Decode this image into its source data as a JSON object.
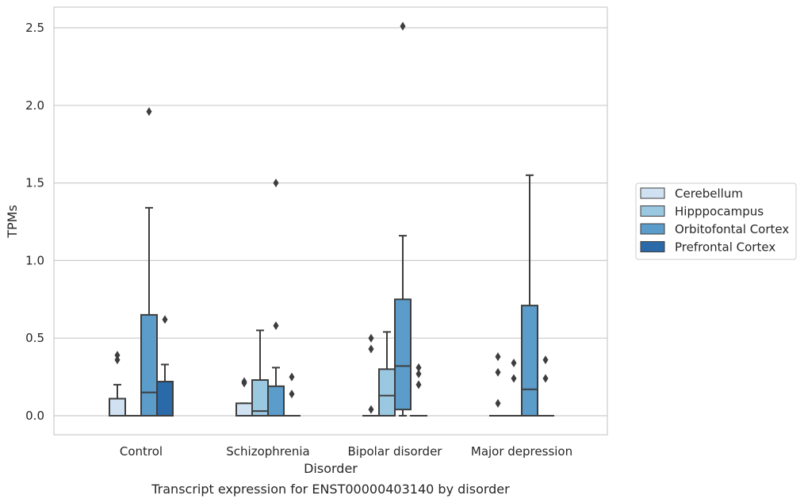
{
  "chart_data": {
    "type": "box",
    "xlabel": "Disorder",
    "ylabel": "TPMs",
    "caption": "Transcript expression for ENST00000403140 by disorder",
    "ylim": [
      -0.12,
      2.64
    ],
    "yticks": [
      "0.0",
      "0.5",
      "1.0",
      "1.5",
      "2.0",
      "2.5"
    ],
    "grid": "horizontal",
    "legend_placement": "right",
    "categories": [
      "Control",
      "Schizophrenia",
      "Bipolar disorder",
      "Major depression"
    ],
    "series": [
      {
        "name": "Cerebellum",
        "color": "#d0e1f2",
        "boxes": [
          {
            "q1": 0.0,
            "median": 0.0,
            "q3": 0.11,
            "whislo": 0.0,
            "whishi": 0.2,
            "fliers": [
              0.36,
              0.39
            ]
          },
          {
            "q1": 0.0,
            "median": 0.0,
            "q3": 0.08,
            "whislo": 0.0,
            "whishi": 0.08,
            "fliers": [
              0.21,
              0.22
            ]
          },
          {
            "q1": 0.0,
            "median": 0.0,
            "q3": 0.0,
            "whislo": 0.0,
            "whishi": 0.0,
            "fliers": [
              0.04,
              0.43,
              0.5
            ]
          },
          {
            "q1": 0.0,
            "median": 0.0,
            "q3": 0.0,
            "whislo": 0.0,
            "whishi": 0.0,
            "fliers": [
              0.08,
              0.28,
              0.38
            ]
          }
        ]
      },
      {
        "name": "Hipppocampus",
        "color": "#9ac8e0",
        "boxes": [
          {
            "q1": 0.0,
            "median": 0.0,
            "q3": 0.0,
            "whislo": 0.0,
            "whishi": 0.0,
            "fliers": []
          },
          {
            "q1": 0.0,
            "median": 0.03,
            "q3": 0.23,
            "whislo": 0.0,
            "whishi": 0.55,
            "fliers": []
          },
          {
            "q1": 0.0,
            "median": 0.13,
            "q3": 0.3,
            "whislo": 0.0,
            "whishi": 0.54,
            "fliers": []
          },
          {
            "q1": 0.0,
            "median": 0.0,
            "q3": 0.0,
            "whislo": 0.0,
            "whishi": 0.0,
            "fliers": [
              0.24,
              0.34
            ]
          }
        ]
      },
      {
        "name": "Orbitofontal Cortex",
        "color": "#5b9ccb",
        "boxes": [
          {
            "q1": 0.0,
            "median": 0.15,
            "q3": 0.65,
            "whislo": 0.0,
            "whishi": 1.34,
            "fliers": [
              1.96
            ]
          },
          {
            "q1": 0.0,
            "median": 0.0,
            "q3": 0.19,
            "whislo": 0.0,
            "whishi": 0.31,
            "fliers": [
              0.58,
              1.5
            ]
          },
          {
            "q1": 0.04,
            "median": 0.32,
            "q3": 0.75,
            "whislo": 0.0,
            "whishi": 1.16,
            "fliers": [
              2.51
            ]
          },
          {
            "q1": 0.0,
            "median": 0.17,
            "q3": 0.71,
            "whislo": 0.0,
            "whishi": 1.55,
            "fliers": []
          }
        ]
      },
      {
        "name": "Prefrontal Cortex",
        "color": "#2b6aa8",
        "boxes": [
          {
            "q1": 0.0,
            "median": 0.0,
            "q3": 0.22,
            "whislo": 0.0,
            "whishi": 0.33,
            "fliers": [
              0.62
            ]
          },
          {
            "q1": 0.0,
            "median": 0.0,
            "q3": 0.0,
            "whislo": 0.0,
            "whishi": 0.0,
            "fliers": [
              0.14,
              0.25
            ]
          },
          {
            "q1": 0.0,
            "median": 0.0,
            "q3": 0.0,
            "whislo": 0.0,
            "whishi": 0.0,
            "fliers": [
              0.2,
              0.27,
              0.31
            ]
          },
          {
            "q1": 0.0,
            "median": 0.0,
            "q3": 0.0,
            "whislo": 0.0,
            "whishi": 0.0,
            "fliers": [
              0.24,
              0.36
            ]
          }
        ]
      }
    ]
  }
}
